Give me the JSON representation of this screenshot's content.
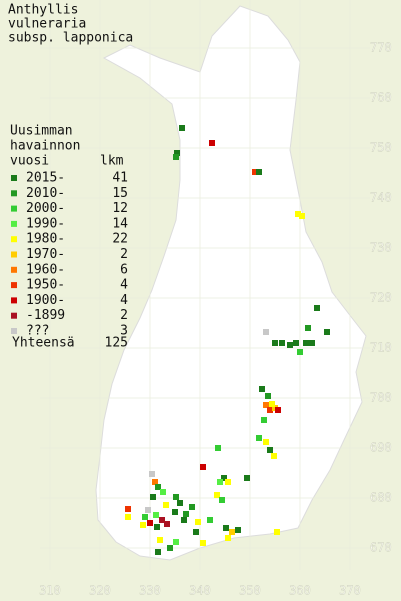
{
  "title": [
    "Anthyllis",
    "vulneraria",
    "subsp. lapponica"
  ],
  "legend": {
    "header": [
      "Uusimman",
      "havainnon"
    ],
    "column_labels": [
      "vuosi",
      "lkm"
    ],
    "rows": [
      {
        "label": "2015-",
        "count": 41,
        "color": "#1a7a1a"
      },
      {
        "label": "2010-",
        "count": 15,
        "color": "#229922"
      },
      {
        "label": "2000-",
        "count": 12,
        "color": "#33cc33"
      },
      {
        "label": "1990-",
        "count": 14,
        "color": "#55ee44"
      },
      {
        "label": "1980-",
        "count": 22,
        "color": "#ffff00"
      },
      {
        "label": "1970-",
        "count": 2,
        "color": "#ffcc00"
      },
      {
        "label": "1960-",
        "count": 6,
        "color": "#ff7700"
      },
      {
        "label": "1950-",
        "count": 4,
        "color": "#ee3300"
      },
      {
        "label": "1900-",
        "count": 4,
        "color": "#cc0000"
      },
      {
        "label": "-1899",
        "count": 2,
        "color": "#aa1122"
      },
      {
        "label": "???",
        "count": 3,
        "color": "#c8c8c8"
      }
    ],
    "total_label": "Yhteensä",
    "total": 125
  },
  "axes": {
    "x_ticks": [
      310,
      320,
      330,
      340,
      350,
      360,
      370
    ],
    "y_ticks": [
      770,
      760,
      750,
      740,
      730,
      720,
      710,
      700,
      690,
      680,
      670
    ]
  }
}
